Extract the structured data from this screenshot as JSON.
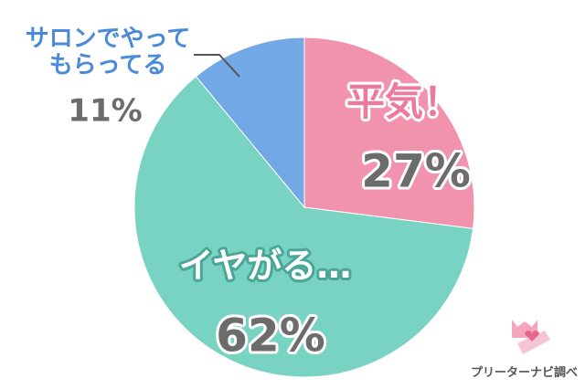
{
  "chart_data": {
    "type": "pie",
    "categories": [
      "平気！",
      "イヤがる…",
      "サロンでやって\nもらってる"
    ],
    "values": [
      27,
      62,
      11
    ],
    "value_labels": [
      "27%",
      "62%",
      "11%"
    ],
    "colors": [
      "#f293ad",
      "#78d3c3",
      "#72a8e6"
    ],
    "label_colors": [
      "#ec7a9c",
      "#ffffff",
      "#4a8ad8"
    ],
    "source": "プリーターナビ調べ"
  }
}
